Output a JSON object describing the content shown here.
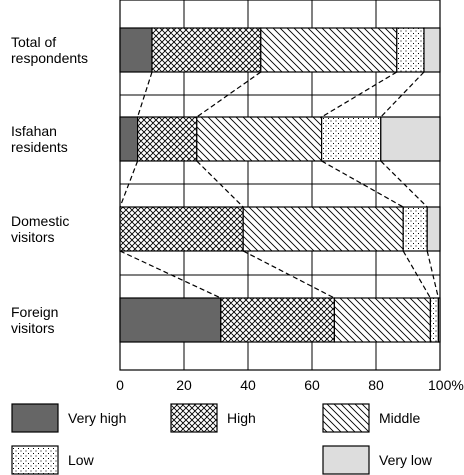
{
  "chart_data": {
    "type": "bar",
    "orientation": "horizontal",
    "stacked": true,
    "categories": [
      [
        "Total of",
        "respondents"
      ],
      [
        "Isfahan",
        "residents"
      ],
      [
        "Domestic",
        "visitors"
      ],
      [
        "Foreign",
        "visitors"
      ]
    ],
    "series": [
      {
        "name": "Very high",
        "pattern": "solid-dark",
        "color": "#666666",
        "values": [
          10,
          5.5,
          0,
          31.5
        ]
      },
      {
        "name": "High",
        "pattern": "crosshatch",
        "color": "#ffffff",
        "values": [
          34,
          18.5,
          38.5,
          35.5
        ]
      },
      {
        "name": "Middle",
        "pattern": "diagonal",
        "color": "#ffffff",
        "values": [
          42.5,
          39,
          50,
          30
        ]
      },
      {
        "name": "Low",
        "pattern": "dots",
        "color": "#ffffff",
        "values": [
          8.5,
          18.5,
          7.5,
          2.5
        ]
      },
      {
        "name": "Very low",
        "pattern": "solid-light",
        "color": "#dddddd",
        "values": [
          5,
          18.5,
          4,
          0.5
        ]
      }
    ],
    "xlim": [
      0,
      100
    ],
    "xticks": [
      0,
      20,
      40,
      60,
      80,
      100
    ],
    "xtick_labels": [
      "0",
      "20",
      "40",
      "60",
      "80",
      "100%"
    ],
    "grid": true,
    "connectors": "dashed",
    "legend_position": "bottom"
  }
}
